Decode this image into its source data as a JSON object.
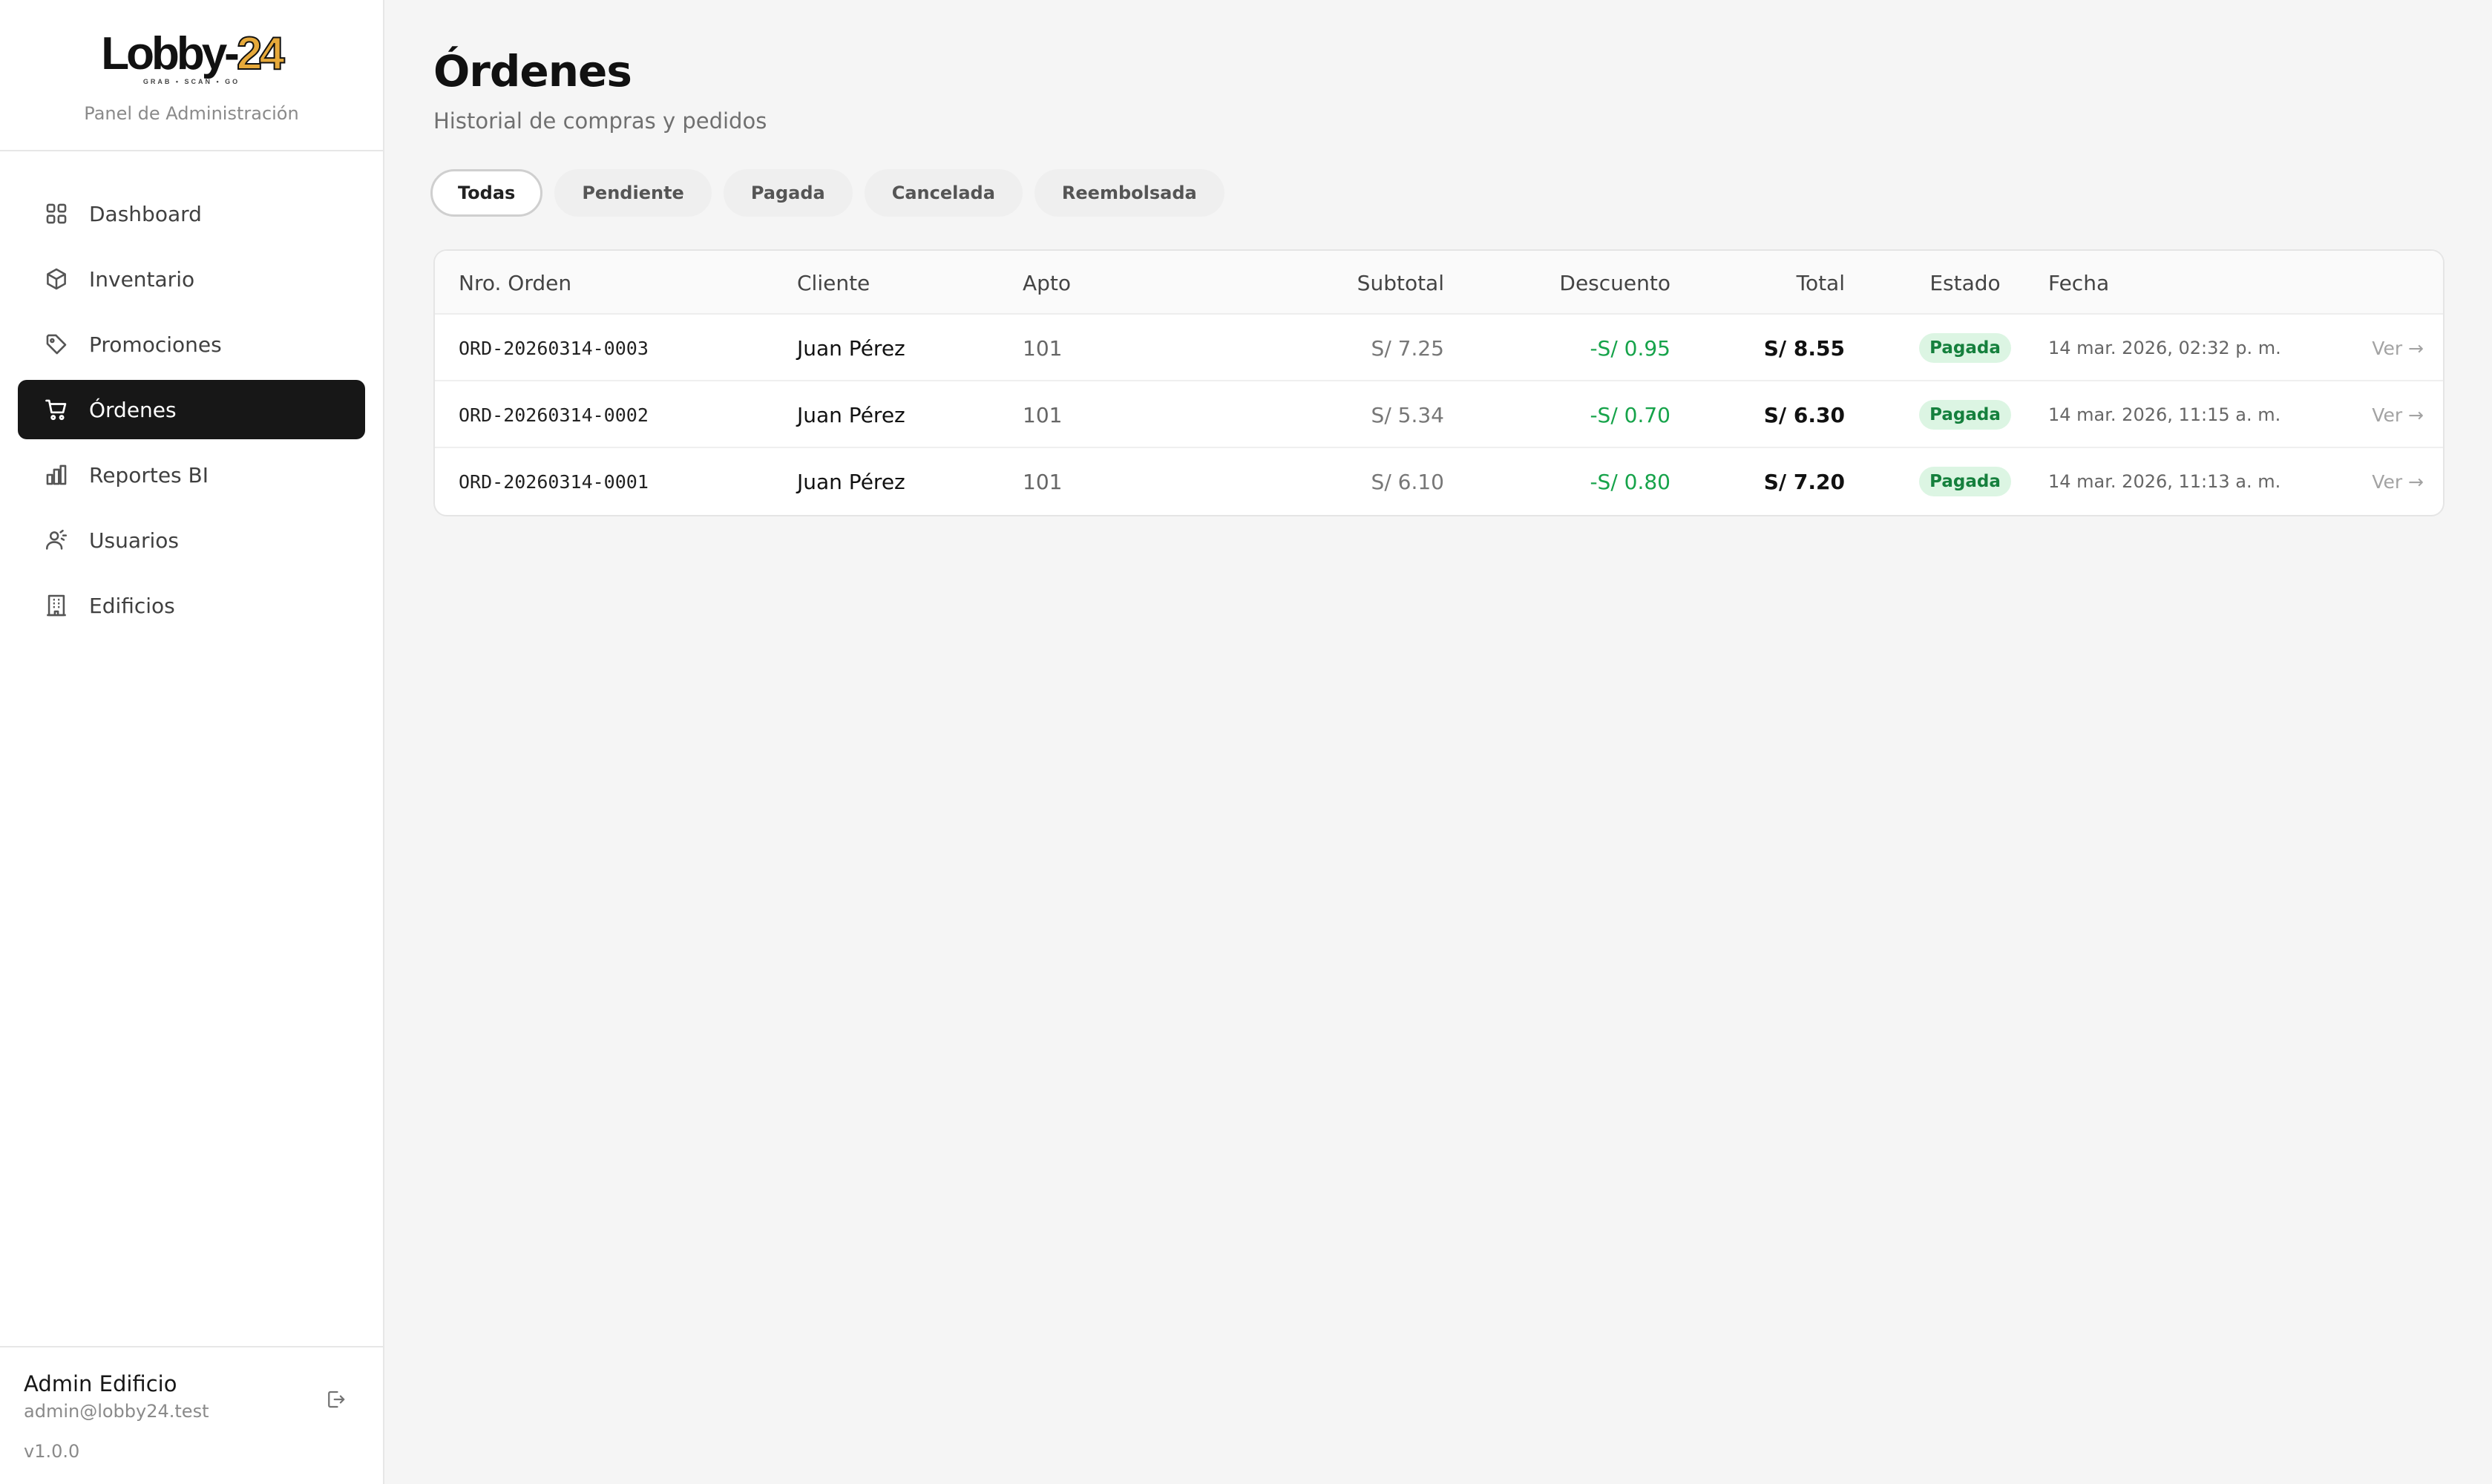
{
  "brand": {
    "logo_main": "Lobby-",
    "logo_accent": "24",
    "logo_tagline": "GRAB • SCAN • GO",
    "subtitle": "Panel de Administración"
  },
  "sidebar": {
    "items": [
      {
        "label": "Dashboard",
        "icon": "grid-icon",
        "active": false
      },
      {
        "label": "Inventario",
        "icon": "box-icon",
        "active": false
      },
      {
        "label": "Promociones",
        "icon": "tag-icon",
        "active": false
      },
      {
        "label": "Órdenes",
        "icon": "cart-icon",
        "active": true
      },
      {
        "label": "Reportes BI",
        "icon": "bar-chart-icon",
        "active": false
      },
      {
        "label": "Usuarios",
        "icon": "users-icon",
        "active": false
      },
      {
        "label": "Edificios",
        "icon": "building-icon",
        "active": false
      }
    ],
    "footer": {
      "user_name": "Admin Edificio",
      "user_email": "admin@lobby24.test",
      "version": "v1.0.0",
      "logout_icon": "logout-icon"
    }
  },
  "header": {
    "title": "Órdenes",
    "subtitle": "Historial de compras y pedidos"
  },
  "filters": {
    "items": [
      "Todas",
      "Pendiente",
      "Pagada",
      "Cancelada",
      "Reembolsada"
    ],
    "active": "Todas"
  },
  "table": {
    "columns": [
      "Nro. Orden",
      "Cliente",
      "Apto",
      "Subtotal",
      "Descuento",
      "Total",
      "Estado",
      "Fecha"
    ],
    "rows": [
      {
        "order": "ORD-20260314-0003",
        "client": "Juan Pérez",
        "apto": "101",
        "subtotal": "S/ 7.25",
        "discount": "-S/ 0.95",
        "total": "S/ 8.55",
        "status": "Pagada",
        "date": "14 mar. 2026, 02:32 p. m.",
        "action": "Ver →"
      },
      {
        "order": "ORD-20260314-0002",
        "client": "Juan Pérez",
        "apto": "101",
        "subtotal": "S/ 5.34",
        "discount": "-S/ 0.70",
        "total": "S/ 6.30",
        "status": "Pagada",
        "date": "14 mar. 2026, 11:15 a. m.",
        "action": "Ver →"
      },
      {
        "order": "ORD-20260314-0001",
        "client": "Juan Pérez",
        "apto": "101",
        "subtotal": "S/ 6.10",
        "discount": "-S/ 0.80",
        "total": "S/ 7.20",
        "status": "Pagada",
        "date": "14 mar. 2026, 11:13 a. m.",
        "action": "Ver →"
      }
    ]
  },
  "colors": {
    "active_nav_bg": "#171717",
    "discount_green": "#16a34a",
    "badge_bg": "#dcf5e3",
    "badge_text": "#15803d",
    "logo_accent": "#e6a93a"
  }
}
